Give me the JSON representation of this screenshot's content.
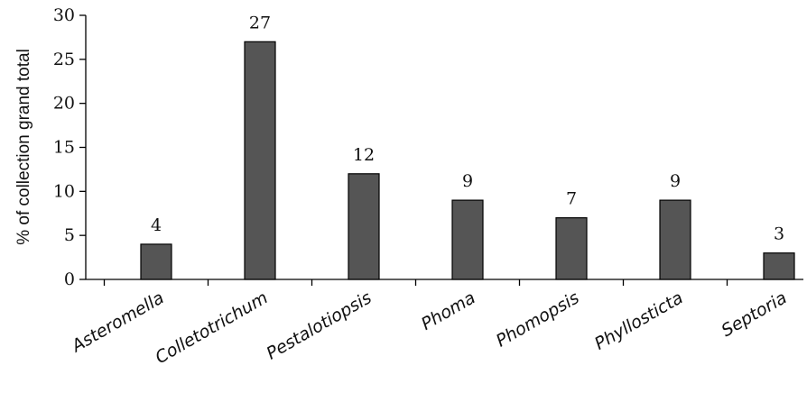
{
  "chart_data": {
    "type": "bar",
    "categories": [
      "Asteromella",
      "Colletotrichum",
      "Pestalotiopsis",
      "Phoma",
      "Phomopsis",
      "Phyllosticta",
      "Septoria"
    ],
    "values": [
      4,
      27,
      12,
      9,
      7,
      9,
      3
    ],
    "data_labels": [
      "4",
      "27",
      "12",
      "9",
      "7",
      "9",
      "3"
    ],
    "title": "",
    "xlabel": "",
    "ylabel": "% of collection grand total",
    "ylim": [
      0,
      30
    ],
    "yticks": [
      0,
      5,
      10,
      15,
      20,
      25,
      30
    ],
    "grid": false,
    "legend": "none",
    "bar_color": "#555555",
    "category_label_style": "italic, rotated"
  }
}
